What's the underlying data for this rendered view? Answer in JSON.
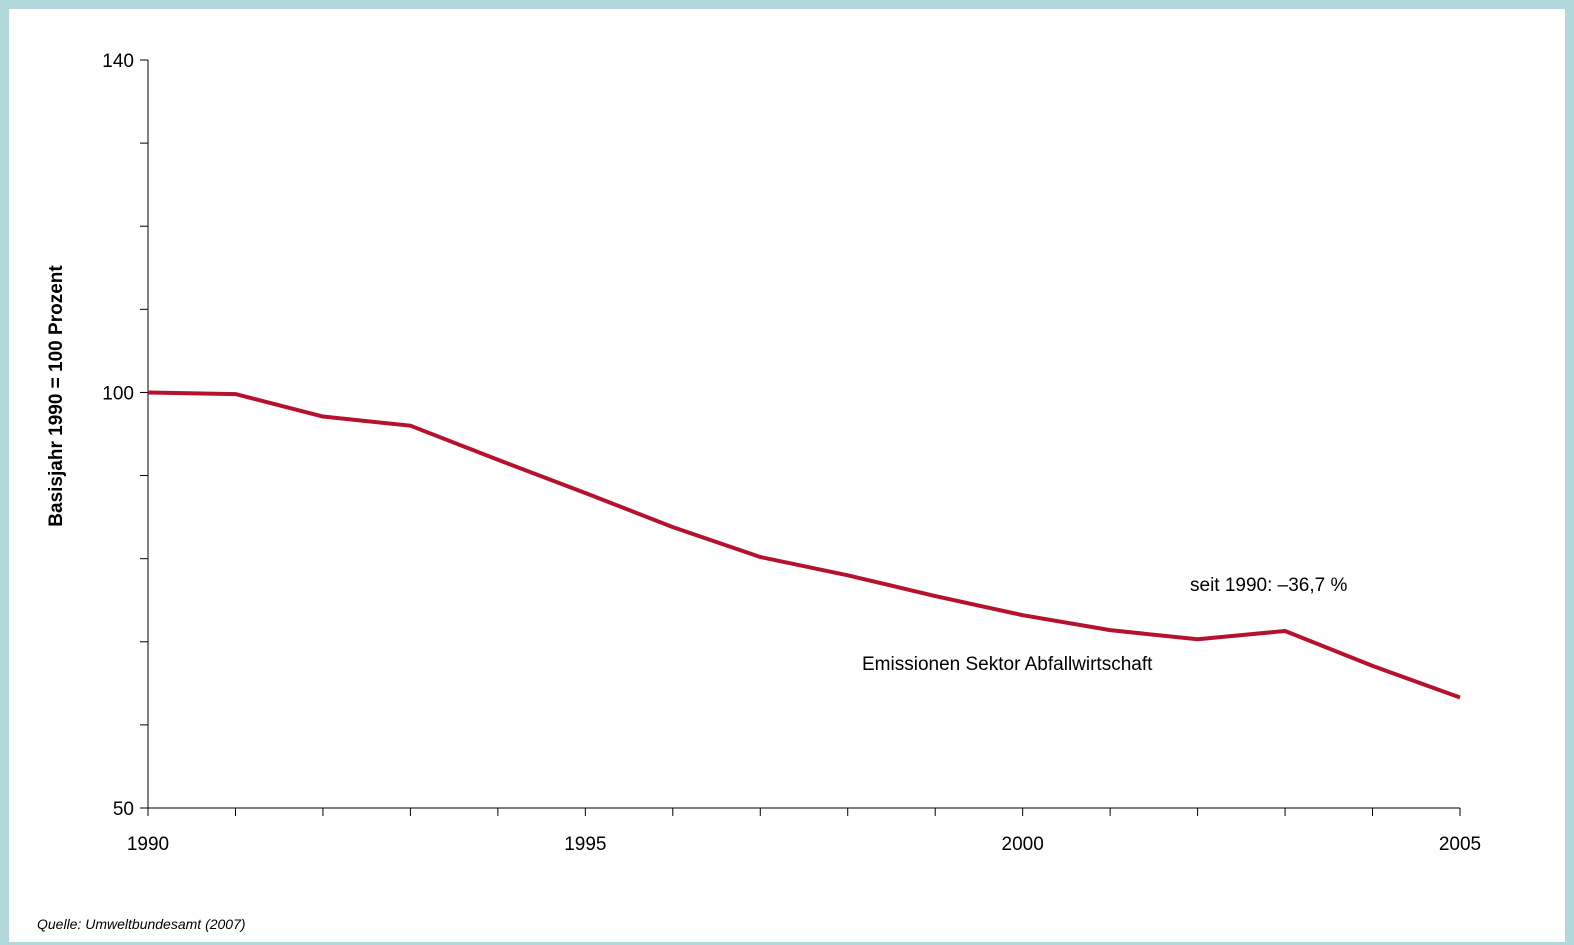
{
  "chart_data": {
    "type": "line",
    "title": "",
    "xlabel": "",
    "ylabel": "Basisjahr 1990 = 100 Prozent",
    "xlim": [
      1990,
      2005
    ],
    "ylim": [
      50,
      140
    ],
    "x_ticks": [
      1990,
      1995,
      2000,
      2005
    ],
    "y_ticks": [
      50,
      100,
      140
    ],
    "grid": false,
    "series": [
      {
        "name": "Emissionen Sektor Abfallwirtschaft",
        "color": "#b5122e",
        "x": [
          1990,
          1991,
          1992,
          1993,
          1994,
          1995,
          1996,
          1997,
          1998,
          1999,
          2000,
          2001,
          2002,
          2003,
          2004,
          2005
        ],
        "values": [
          100,
          99.8,
          97.1,
          96.0,
          91.9,
          87.9,
          83.8,
          80.2,
          78.0,
          75.5,
          73.2,
          71.4,
          70.3,
          71.3,
          67.1,
          63.3
        ]
      }
    ],
    "annotations": [
      {
        "text": "seit 1990: –36,7 %"
      }
    ]
  },
  "source_note": "Quelle: Umweltbundesamt (2007)"
}
